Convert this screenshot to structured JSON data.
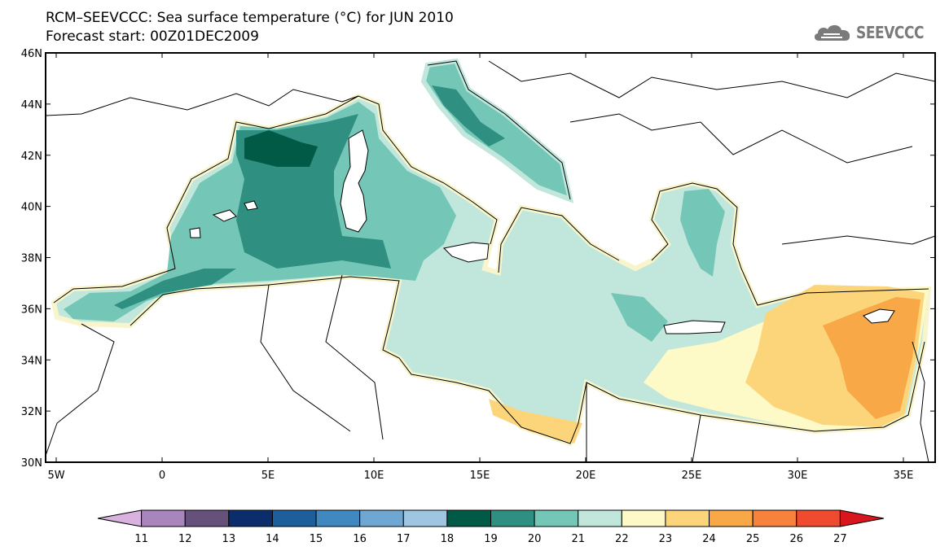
{
  "title": {
    "line1": "RCM–SEEVCCC: Sea surface temperature (°C) for JUN 2010",
    "line2": "Forecast start: 00Z01DEC2009"
  },
  "logo": {
    "text": "SEEVCCC",
    "icon": "cloud-icon",
    "color": "#7a7a7a"
  },
  "map": {
    "lon_range": [
      -5.5,
      36.5
    ],
    "lat_range": [
      30,
      46
    ],
    "x_ticks": [
      {
        "value": -5,
        "label": "5W"
      },
      {
        "value": 0,
        "label": "0"
      },
      {
        "value": 5,
        "label": "5E"
      },
      {
        "value": 10,
        "label": "10E"
      },
      {
        "value": 15,
        "label": "15E"
      },
      {
        "value": 20,
        "label": "20E"
      },
      {
        "value": 25,
        "label": "25E"
      },
      {
        "value": 30,
        "label": "30E"
      },
      {
        "value": 35,
        "label": "35E"
      }
    ],
    "y_ticks": [
      {
        "value": 46,
        "label": "46N"
      },
      {
        "value": 44,
        "label": "44N"
      },
      {
        "value": 42,
        "label": "42N"
      },
      {
        "value": 40,
        "label": "40N"
      },
      {
        "value": 38,
        "label": "38N"
      },
      {
        "value": 36,
        "label": "36N"
      },
      {
        "value": 34,
        "label": "34N"
      },
      {
        "value": 32,
        "label": "32N"
      },
      {
        "value": 30,
        "label": "30N"
      }
    ]
  },
  "colorbar": {
    "levels": [
      "11",
      "12",
      "13",
      "14",
      "15",
      "16",
      "17",
      "18",
      "19",
      "20",
      "21",
      "22",
      "23",
      "24",
      "25",
      "26",
      "27"
    ],
    "colors": [
      "#d9b2e0",
      "#a985bd",
      "#66517a",
      "#0b2d6b",
      "#1d5e9c",
      "#3f88c0",
      "#6ea8d2",
      "#9ec6e2",
      "#005a46",
      "#2f8f80",
      "#74c6b7",
      "#c1e7dd",
      "#fdfac7",
      "#fcd57a",
      "#f9a848",
      "#f6823c",
      "#f04a2f",
      "#d9151e"
    ]
  }
}
